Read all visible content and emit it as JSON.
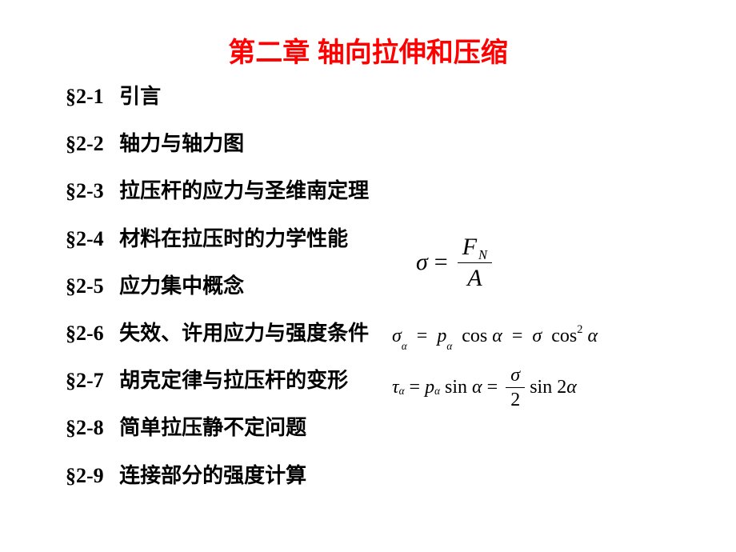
{
  "title": "第二章  轴向拉伸和压缩",
  "toc": [
    {
      "num": "§2-1",
      "label": "引言"
    },
    {
      "num": "§2-2",
      "label": "轴力与轴力图"
    },
    {
      "num": "§2-3",
      "label": "拉压杆的应力与圣维南定理"
    },
    {
      "num": "§2-4",
      "label": "材料在拉压时的力学性能"
    },
    {
      "num": "§2-5",
      "label": "应力集中概念"
    },
    {
      "num": "§2-6",
      "label": "失效、许用应力与强度条件"
    },
    {
      "num": "§2-7",
      "label": "胡克定律与拉压杆的变形"
    },
    {
      "num": "§2-8",
      "label": "简单拉压静不定问题"
    },
    {
      "num": "§2-9",
      "label": "连接部分的强度计算"
    }
  ],
  "formulas": {
    "f1": {
      "lhs_symbol": "σ",
      "eq": "=",
      "num_symbol": "F",
      "num_sub": "N",
      "den_symbol": "A"
    },
    "f2": {
      "sigma": "σ",
      "alpha": "α",
      "eq": "=",
      "p": "p",
      "cos": "cos",
      "sigma2": "σ",
      "cos2": "cos",
      "exp": "2"
    },
    "f3": {
      "tau": "τ",
      "alpha": "α",
      "eq": "=",
      "p": "p",
      "sin": "sin",
      "sigma": "σ",
      "den": "2",
      "sin2": "sin",
      "two": "2"
    }
  },
  "style": {
    "title_color": "#ff0000",
    "text_color": "#000000",
    "background": "#ffffff",
    "title_fontsize": 34,
    "toc_fontsize": 26,
    "formula_fontsize_main": 30,
    "formula_fontsize_line": 24
  }
}
